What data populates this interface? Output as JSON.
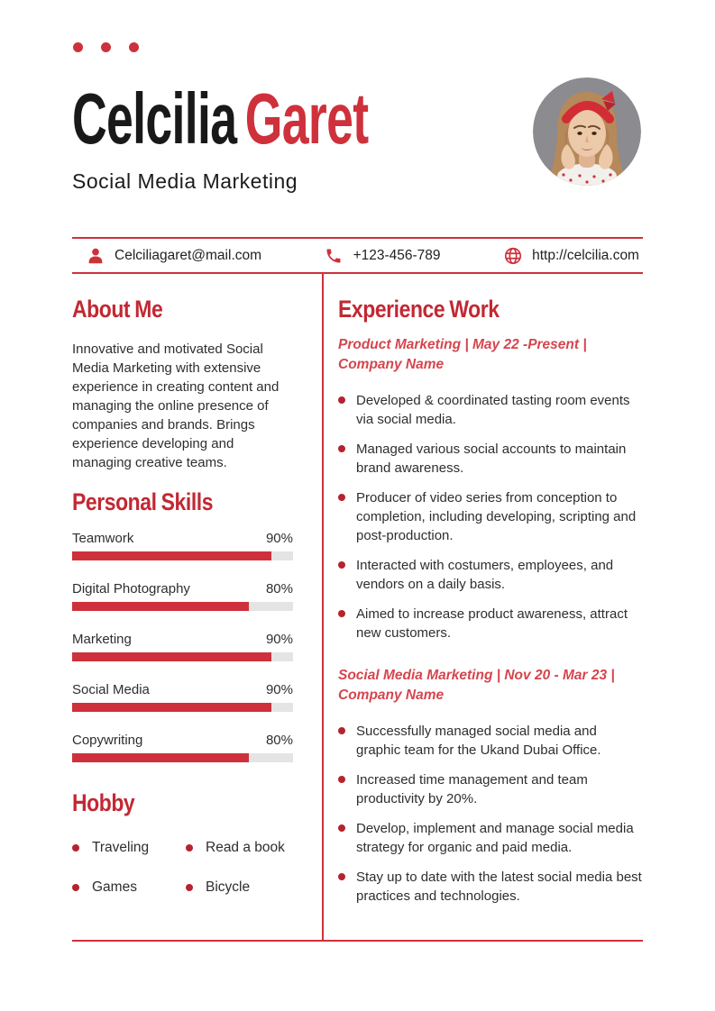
{
  "colors": {
    "accent": "#ce313b",
    "heading": "#c22833",
    "job_title": "#d6454e",
    "bullet": "#b5232e",
    "track": "#e4e4e4",
    "text": "#2e2e2e",
    "name_black": "#191919",
    "photo_bg": "#8b8b90"
  },
  "icons": {
    "email": "person-icon",
    "phone": "phone-icon",
    "website": "globe-icon"
  },
  "header": {
    "first_name": "Celcilia",
    "last_name": "Garet",
    "subtitle": "Social Media Marketing"
  },
  "contact": {
    "email": "Celciliagaret@mail.com",
    "phone": "+123-456-789",
    "website": "http://celcilia.com"
  },
  "about": {
    "title": "About Me",
    "text": "Innovative and motivated Social Media Marketing with extensive experience in creating content and managing the online presence of companies and brands. Brings experience developing and managing creative teams."
  },
  "skills": {
    "title": "Personal Skills",
    "items": [
      {
        "label": "Teamwork",
        "percent": "90%",
        "value": 90
      },
      {
        "label": "Digital Photography",
        "percent": "80%",
        "value": 80
      },
      {
        "label": "Marketing",
        "percent": "90%",
        "value": 90
      },
      {
        "label": "Social Media",
        "percent": "90%",
        "value": 90
      },
      {
        "label": "Copywriting",
        "percent": "80%",
        "value": 80
      }
    ]
  },
  "hobby": {
    "title": "Hobby",
    "items": [
      "Traveling",
      "Read a book",
      "Games",
      "Bicycle"
    ]
  },
  "experience": {
    "title": "Experience Work",
    "jobs": [
      {
        "heading": "Product Marketing | May 22 -Present | Company Name",
        "bullets": [
          "Developed & coordinated tasting room events via social media.",
          "Managed various social accounts to maintain brand awareness.",
          "Producer of video series from conception to completion, including developing, scripting and post-production.",
          "Interacted with costumers, employees, and vendors on a daily basis.",
          "Aimed to increase product awareness, attract new customers."
        ]
      },
      {
        "heading": "Social Media Marketing | Nov 20 - Mar 23 | Company Name",
        "bullets": [
          "Successfully managed social media and graphic team for the Ukand Dubai Office.",
          "Increased time management and team productivity by 20%.",
          "Develop, implement and manage social media strategy for organic and paid media.",
          "Stay up to date with the latest social media best practices and technologies."
        ]
      }
    ]
  }
}
